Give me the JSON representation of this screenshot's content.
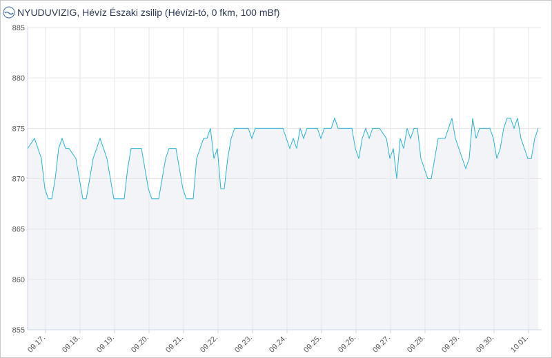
{
  "chart_data": {
    "type": "line",
    "title": "NYUDUVIZIG, Hévíz Északi zsilip (Hévízi-tó, 0 fkm, 100 mBf)",
    "xlim": [
      -0.52,
      14.38
    ],
    "xticks": [
      {
        "value": 0,
        "label": "09.17."
      },
      {
        "value": 1,
        "label": "09.18."
      },
      {
        "value": 2,
        "label": "09.19."
      },
      {
        "value": 3,
        "label": "09.20."
      },
      {
        "value": 4,
        "label": "09.21."
      },
      {
        "value": 5,
        "label": "09.22."
      },
      {
        "value": 6,
        "label": "09.23."
      },
      {
        "value": 7,
        "label": "09.24."
      },
      {
        "value": 8,
        "label": "09.25."
      },
      {
        "value": 9,
        "label": "09.26."
      },
      {
        "value": 10,
        "label": "09.27."
      },
      {
        "value": 11,
        "label": "09.28."
      },
      {
        "value": 12,
        "label": "09.29."
      },
      {
        "value": 13,
        "label": "09.30."
      },
      {
        "value": 14,
        "label": "10.01."
      }
    ],
    "ylim": [
      855,
      885
    ],
    "yticks": [
      855,
      860,
      865,
      870,
      875,
      880,
      885
    ],
    "grid": true,
    "color": "#29b3d3",
    "fill": "#f3f4f8",
    "x": [
      -0.52,
      -0.32,
      -0.22,
      -0.12,
      -0.02,
      0.08,
      0.18,
      0.28,
      0.38,
      0.48,
      0.58,
      0.68,
      0.88,
      0.98,
      1.08,
      1.18,
      1.28,
      1.38,
      1.48,
      1.58,
      1.68,
      1.78,
      1.88,
      1.98,
      2.08,
      2.28,
      2.38,
      2.48,
      2.68,
      2.78,
      2.88,
      2.98,
      3.08,
      3.28,
      3.38,
      3.48,
      3.58,
      3.68,
      3.78,
      3.88,
      3.98,
      4.08,
      4.18,
      4.28,
      4.38,
      4.48,
      4.58,
      4.68,
      4.78,
      4.88,
      4.98,
      5.08,
      5.18,
      5.28,
      5.38,
      5.48,
      5.68,
      5.88,
      5.98,
      6.08,
      6.28,
      6.48,
      6.68,
      6.88,
      7.08,
      7.18,
      7.28,
      7.38,
      7.48,
      7.58,
      7.88,
      7.98,
      8.08,
      8.28,
      8.38,
      8.48,
      8.68,
      8.88,
      8.98,
      9.08,
      9.18,
      9.28,
      9.38,
      9.48,
      9.68,
      9.88,
      9.98,
      10.08,
      10.18,
      10.28,
      10.38,
      10.48,
      10.58,
      10.68,
      10.78,
      10.88,
      10.98,
      11.08,
      11.18,
      11.28,
      11.38,
      11.48,
      11.58,
      11.68,
      11.78,
      11.88,
      11.98,
      12.08,
      12.18,
      12.28,
      12.38,
      12.48,
      12.58,
      12.68,
      12.88,
      12.98,
      13.08,
      13.18,
      13.28,
      13.38,
      13.48,
      13.58,
      13.68,
      13.78,
      13.88,
      13.98,
      14.08,
      14.18,
      14.28
    ],
    "values": [
      873,
      874,
      873,
      872,
      869,
      868,
      868,
      870,
      873,
      874,
      873,
      873,
      872,
      870,
      868,
      868,
      870,
      872,
      873,
      874,
      873,
      872,
      870,
      868,
      868,
      868,
      871,
      873,
      873,
      873,
      871,
      869,
      868,
      868,
      870,
      872,
      873,
      873,
      873,
      871,
      869,
      868,
      868,
      868,
      872,
      873,
      874,
      874,
      875,
      872,
      873,
      869,
      869,
      872,
      874,
      875,
      875,
      875,
      874,
      875,
      875,
      875,
      875,
      875,
      873,
      874,
      873,
      875,
      874,
      875,
      875,
      874,
      875,
      875,
      876,
      875,
      875,
      875,
      873,
      872,
      874,
      875,
      874,
      875,
      875,
      874,
      872,
      873,
      870,
      874,
      873,
      875,
      874,
      875,
      875,
      872,
      871,
      870,
      870,
      872,
      874,
      874,
      874,
      875,
      876,
      874,
      873,
      872,
      871,
      872,
      876,
      874,
      875,
      875,
      875,
      874,
      872,
      873,
      875,
      876,
      876,
      875,
      876,
      874,
      873,
      872,
      872,
      874,
      875
    ]
  }
}
